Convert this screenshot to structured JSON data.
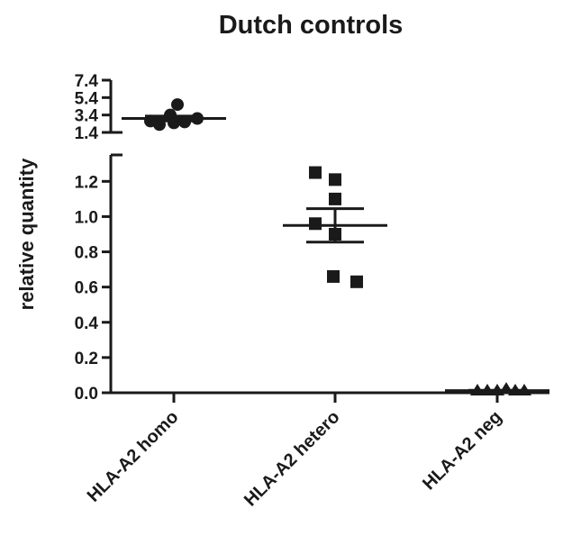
{
  "chart_data": {
    "type": "scatter",
    "title": "Dutch controls",
    "ylabel": "relative quantity",
    "xlabel": "",
    "categories": [
      "HLA-A2 homo",
      "HLA-A2 hetero",
      "HLA-A2 neg"
    ],
    "y_axis": {
      "broken": true,
      "lower_segment": {
        "ylim": [
          0.0,
          1.35
        ],
        "ticks": [
          "0.0",
          "0.2",
          "0.4",
          "0.6",
          "0.8",
          "1.0",
          "1.2"
        ]
      },
      "upper_segment": {
        "ylim": [
          1.4,
          7.4
        ],
        "ticks": [
          "1.4",
          "3.4",
          "5.4",
          "7.4"
        ]
      }
    },
    "series": [
      {
        "category": "HLA-A2 homo",
        "marker": "circle",
        "values": [
          2.3,
          2.5,
          2.6,
          2.7,
          3.0,
          3.4,
          4.6
        ],
        "mean": 3.0,
        "sem": 0.28
      },
      {
        "category": "HLA-A2 hetero",
        "marker": "square",
        "values": [
          1.25,
          1.21,
          1.1,
          0.96,
          0.9,
          0.66,
          0.63
        ],
        "mean": 0.95,
        "sem": 0.095
      },
      {
        "category": "HLA-A2 neg",
        "marker": "triangle",
        "values": [
          0.01,
          0.01,
          0.01,
          0.02,
          0.01,
          0.01
        ],
        "mean": 0.012,
        "sem": 0.002
      }
    ],
    "grid": false,
    "legend": "none"
  }
}
